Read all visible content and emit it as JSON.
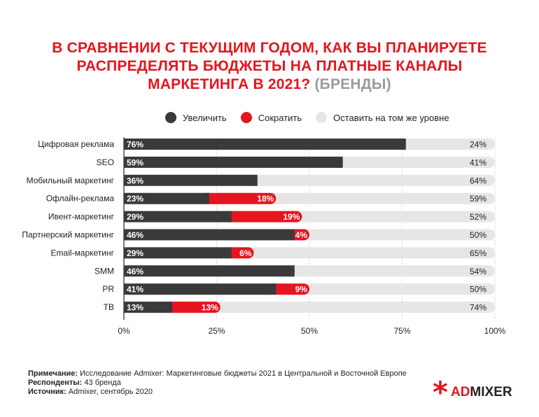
{
  "title": {
    "line1": "В СРАВНЕНИИ С ТЕКУЩИМ ГОДОМ, КАК ВЫ ПЛАНИРУЕТЕ",
    "line2": "РАСПРЕДЕЛЯТЬ БЮДЖЕТЫ НА ПЛАТНЫЕ КАНАЛЫ",
    "line3": "МАРКЕТИНГА В 2021?",
    "suffix": "(БРЕНДЫ)"
  },
  "legend": [
    {
      "label": "Увеличить",
      "color": "#3a3a3c"
    },
    {
      "label": "Сократить",
      "color": "#e6141e"
    },
    {
      "label": "Оставить на том же уровне",
      "color": "#e6e6e6"
    }
  ],
  "chart_data": {
    "type": "bar",
    "orientation": "horizontal",
    "stacked": true,
    "categories": [
      "Цифровая реклама",
      "SEO",
      "Мобильный маркетинг",
      "Офлайн-реклама",
      "Ивент-маркетинг",
      "Партнерский маркетинг",
      "Email-маркетинг",
      "SMM",
      "PR",
      "ТВ"
    ],
    "series": [
      {
        "name": "Увеличить",
        "color": "#3a3a3c",
        "values": [
          76,
          59,
          36,
          23,
          29,
          46,
          29,
          46,
          41,
          13
        ],
        "labels": [
          "76%",
          "59%",
          "36%",
          "23%",
          "29%",
          "46%",
          "29%",
          "46%",
          "41%",
          "13%"
        ]
      },
      {
        "name": "Сократить",
        "color": "#e6141e",
        "values": [
          0,
          0,
          0,
          18,
          19,
          4,
          6,
          0,
          9,
          13
        ],
        "labels": [
          "",
          "",
          "",
          "18%",
          "19%",
          "4%",
          "6%",
          "",
          "9%",
          "13%"
        ]
      },
      {
        "name": "Оставить на том же уровне",
        "color": "#e6e6e6",
        "values": [
          24,
          41,
          64,
          59,
          52,
          50,
          65,
          54,
          50,
          74
        ],
        "labels": [
          "24%",
          "41%",
          "64%",
          "59%",
          "52%",
          "50%",
          "65%",
          "54%",
          "50%",
          "74%"
        ]
      }
    ],
    "x_ticks": [
      "0%",
      "25%",
      "50%",
      "75%",
      "100%"
    ],
    "xlim": [
      0,
      100
    ],
    "grid": true,
    "legend_position": "top"
  },
  "notes": {
    "note_label": "Примечание:",
    "note_text": "Исследование Admixer: Маркетинговые бюджеты 2021 в Центральной и Восточной Европе",
    "resp_label": "Респонденты:",
    "resp_text": "43 бренда",
    "src_label": "Источник:",
    "src_text": "Admixer, сентябрь 2020"
  },
  "logo": {
    "part1": "AD",
    "part2": "MIXER",
    "icon": "asterisk-icon"
  }
}
